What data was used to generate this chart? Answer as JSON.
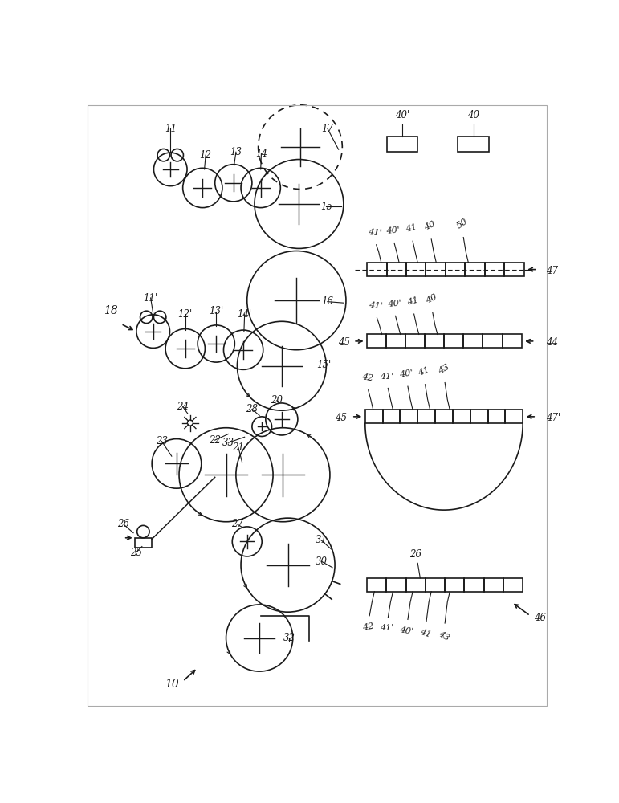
{
  "bg_color": "#ffffff",
  "line_color": "#1a1a1a",
  "fig_width": 7.71,
  "fig_height": 10.0,
  "dpi": 100
}
